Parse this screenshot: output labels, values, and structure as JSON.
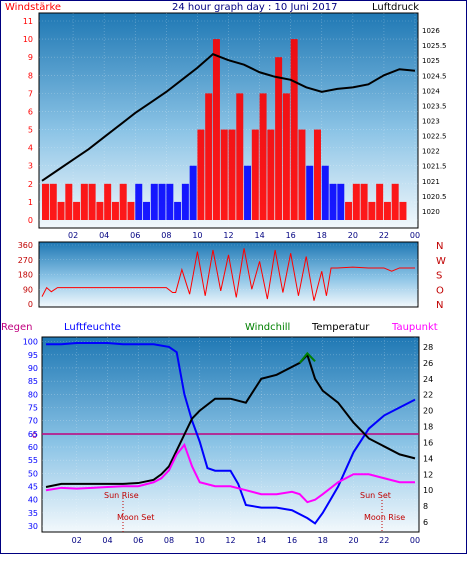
{
  "title": "24 hour graph day : 10 Juni 2017",
  "labels": {
    "windstaerke": "Windstärke",
    "luftdruck": "Luftdruck",
    "regen": "Regen",
    "luftfeuchte": "Luftfeuchte",
    "windchill": "Windchill",
    "temperatur": "Temperatur",
    "taupunkt": "Taupunkt",
    "sun_rise": "Sun Rise",
    "moon_set": "Moon Set",
    "sun_set": "Sun Set",
    "moon_rise": "Moon Rise",
    "regen_zero": "0"
  },
  "colors": {
    "wind_bar_red": "#ff0000",
    "wind_bar_blue": "#0000ff",
    "pressure": "#000000",
    "humidity": "#0000ff",
    "temperature": "#000000",
    "dewpoint": "#ff00ff",
    "windchill": "#008000",
    "rain_line": "#c0007f",
    "title": "#000080",
    "wind_axis": "#ff0000",
    "dir_axis": "#c00000",
    "bg_top": "#1f78b4",
    "bg_bottom": "#eef5fb"
  },
  "chart_data": [
    {
      "type": "bar",
      "panel": "wind",
      "title": "24 hour graph day : 10 Juni 2017",
      "ylabel_left": "Windstärke",
      "ylabel_right": "Luftdruck",
      "x_ticks": [
        "02",
        "04",
        "06",
        "08",
        "10",
        "12",
        "14",
        "16",
        "18",
        "20",
        "22",
        "00"
      ],
      "x_range_hours": [
        0,
        24
      ],
      "wind_ylim": [
        0,
        11
      ],
      "wind_ticks": [
        "0",
        "1",
        "2",
        "3",
        "4",
        "5",
        "6",
        "7",
        "8",
        "9",
        "10",
        "11"
      ],
      "pressure_ylim": [
        1019.7,
        1026.3
      ],
      "pressure_ticks": [
        "1020",
        "1020.5",
        "1021",
        "1021.5",
        "1022",
        "1022.5",
        "1023",
        "1023.5",
        "1024",
        "1024.5",
        "1025",
        "1025.5",
        "1026"
      ],
      "series": [
        {
          "name": "Windstärke",
          "x": [
            0,
            0.5,
            1,
            1.5,
            2,
            2.5,
            3,
            3.5,
            4,
            4.5,
            5,
            5.5,
            6,
            6.5,
            7,
            7.5,
            8,
            8.5,
            9,
            9.5,
            10,
            10.5,
            11,
            11.5,
            12,
            12.5,
            13,
            13.5,
            14,
            14.5,
            15,
            15.5,
            16,
            16.5,
            17,
            17.5,
            18,
            18.5,
            19,
            19.5,
            20,
            20.5,
            21,
            21.5,
            22,
            22.5,
            23,
            23.5
          ],
          "values": [
            2,
            2,
            1,
            2,
            1,
            2,
            2,
            1,
            2,
            1,
            2,
            1,
            2,
            1,
            2,
            2,
            2,
            1,
            2,
            3,
            5,
            7,
            10,
            5,
            5,
            7,
            3,
            5,
            7,
            5,
            9,
            7,
            10,
            5,
            3,
            5,
            3,
            2,
            2,
            1,
            2,
            2,
            1,
            2,
            1,
            2,
            1,
            0
          ]
        },
        {
          "name": "Luftdruck",
          "x": [
            0,
            1,
            2,
            3,
            4,
            5,
            6,
            7,
            8,
            9,
            10,
            11,
            12,
            13,
            14,
            15,
            16,
            17,
            18,
            19,
            20,
            21,
            22,
            23,
            24
          ],
          "values": [
            1021.0,
            1021.35,
            1021.7,
            1022.05,
            1022.45,
            1022.85,
            1023.25,
            1023.6,
            1023.95,
            1024.35,
            1024.75,
            1025.2,
            1025.0,
            1024.85,
            1024.6,
            1024.45,
            1024.35,
            1024.1,
            1023.95,
            1024.05,
            1024.1,
            1024.2,
            1024.5,
            1024.7,
            1024.65
          ]
        }
      ]
    },
    {
      "type": "line",
      "panel": "wind-direction",
      "x_ticks": [
        "02",
        "04",
        "06",
        "08",
        "10",
        "12",
        "14",
        "16",
        "18",
        "20",
        "22",
        "00"
      ],
      "deg_ticks": [
        "0",
        "90",
        "180",
        "270",
        "360"
      ],
      "compass_labels": [
        "N",
        "W",
        "S",
        "O",
        "N"
      ],
      "ylim": [
        0,
        360
      ],
      "series": [
        {
          "name": "Windrichtung",
          "x": [
            0,
            0.3,
            0.6,
            1,
            2,
            3,
            4,
            5,
            6,
            7,
            8,
            8.4,
            8.6,
            9,
            9.5,
            10,
            10.5,
            11,
            11.5,
            12,
            12.5,
            13,
            13.5,
            14,
            14.5,
            15,
            15.5,
            16,
            16.5,
            17,
            17.5,
            18,
            18.3,
            18.6,
            19,
            20,
            21,
            22,
            22.5,
            23,
            24
          ],
          "values": [
            45,
            100,
            75,
            100,
            100,
            100,
            100,
            100,
            100,
            100,
            100,
            70,
            70,
            210,
            60,
            320,
            50,
            330,
            80,
            300,
            40,
            340,
            90,
            260,
            30,
            330,
            70,
            310,
            50,
            290,
            20,
            200,
            50,
            220,
            220,
            225,
            220,
            220,
            200,
            220,
            220
          ]
        }
      ]
    },
    {
      "type": "line",
      "panel": "humidity-temperature",
      "x_ticks": [
        "02",
        "04",
        "06",
        "08",
        "10",
        "12",
        "14",
        "16",
        "18",
        "20",
        "22",
        "00"
      ],
      "humidity_ylim": [
        28.5,
        101
      ],
      "humidity_ticks": [
        "30",
        "35",
        "40",
        "45",
        "50",
        "55",
        "60",
        "65",
        "70",
        "75",
        "80",
        "85",
        "90",
        "95",
        "100"
      ],
      "temp_ylim": [
        5,
        29
      ],
      "temp_ticks": [
        "6",
        "8",
        "10",
        "12",
        "14",
        "16",
        "18",
        "20",
        "22",
        "24",
        "26",
        "28"
      ],
      "series": [
        {
          "name": "Luftfeuchte",
          "x": [
            0,
            1,
            2,
            3,
            4,
            5,
            6,
            7,
            8,
            8.5,
            9,
            9.5,
            10,
            10.5,
            11,
            11.5,
            12,
            12.5,
            13,
            14,
            15,
            16,
            17,
            17.5,
            18,
            18.5,
            19,
            20,
            21,
            22,
            23,
            24
          ],
          "values": [
            99,
            99,
            99.5,
            99.5,
            99.5,
            99,
            99,
            99,
            98,
            96,
            80,
            70,
            62,
            52,
            51,
            51,
            51,
            46,
            38,
            37,
            37,
            36,
            33,
            31,
            35,
            40,
            45,
            58,
            67,
            72,
            75,
            78
          ]
        },
        {
          "name": "Temperatur",
          "x": [
            0,
            1,
            2,
            3,
            4,
            5,
            6,
            7,
            7.5,
            8,
            8.5,
            9,
            9.5,
            10,
            11,
            12,
            13,
            14,
            15,
            16,
            16.5,
            17,
            17.5,
            18,
            19,
            20,
            21,
            22,
            23,
            24
          ],
          "values": [
            10.4,
            10.8,
            10.8,
            10.8,
            10.8,
            10.8,
            10.9,
            11.3,
            12,
            13,
            15,
            17,
            19,
            20,
            21.5,
            21.5,
            21,
            24,
            24.5,
            25.5,
            26,
            27,
            24,
            22.5,
            21,
            18.5,
            16.5,
            15.5,
            14.5,
            14
          ]
        },
        {
          "name": "Taupunkt",
          "x": [
            0,
            1,
            2,
            3,
            4,
            5,
            6,
            7,
            7.5,
            8,
            8.5,
            9,
            9.5,
            10,
            11,
            12,
            13,
            14,
            15,
            16,
            16.5,
            17,
            17.5,
            18,
            19,
            20,
            21,
            22,
            23,
            24
          ],
          "values": [
            10,
            10.3,
            10.2,
            10.3,
            10.4,
            10.5,
            10.5,
            11,
            11.5,
            12.5,
            14.5,
            15.7,
            13,
            11,
            10.5,
            10.5,
            10,
            9.5,
            9.5,
            9.8,
            9.5,
            8.5,
            8.8,
            9.5,
            11,
            12,
            12,
            11.5,
            11,
            11
          ]
        },
        {
          "name": "Windchill",
          "x": [
            16.5,
            17,
            17.5
          ],
          "values": [
            26,
            27.2,
            26.2
          ]
        },
        {
          "name": "Regen",
          "x": [
            0,
            24
          ],
          "values": [
            0,
            0
          ]
        }
      ],
      "annotations": [
        {
          "text": "Sun Rise",
          "x": 5.2
        },
        {
          "text": "Moon Set",
          "x": 5.2
        },
        {
          "text": "Sun Set",
          "x": 21.5
        },
        {
          "text": "Moon Rise",
          "x": 21.5
        }
      ]
    }
  ]
}
